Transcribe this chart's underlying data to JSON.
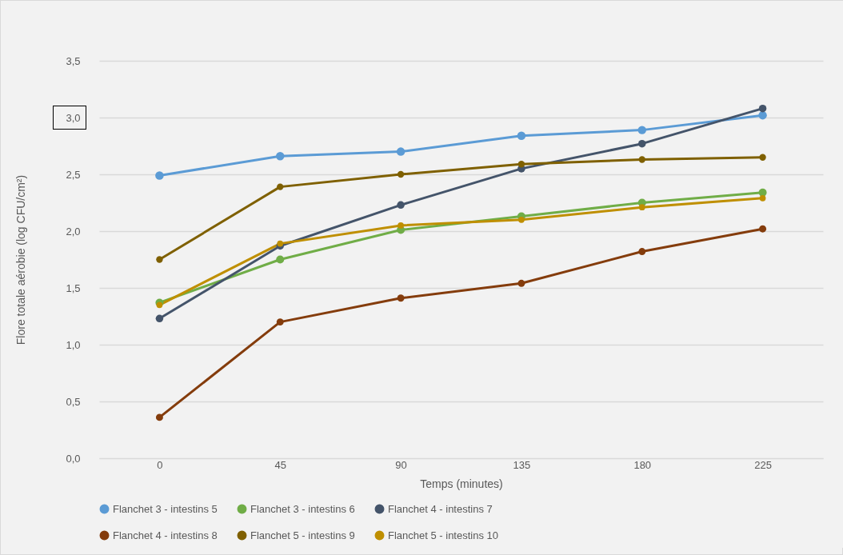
{
  "chart_data": {
    "type": "line",
    "xlabel": "Temps (minutes)",
    "ylabel": "Flore totale aérobie (log CFU/cm²)",
    "categories": [
      "0",
      "45",
      "90",
      "135",
      "180",
      "225"
    ],
    "series": [
      {
        "name": "Flanchet 3 - intestins 5",
        "color": "#5b9bd5",
        "values": [
          2.49,
          2.66,
          2.7,
          2.84,
          2.89,
          3.02
        ]
      },
      {
        "name": "Flanchet 3 - intestins 6",
        "color": "#70ad47",
        "values": [
          1.37,
          1.75,
          2.01,
          2.13,
          2.25,
          2.34
        ]
      },
      {
        "name": "Flanchet 4 - intestins 7",
        "color": "#44546a",
        "values": [
          1.23,
          1.87,
          2.23,
          2.55,
          2.77,
          3.08
        ]
      },
      {
        "name": "Flanchet 4 - intestins 8",
        "color": "#843c0c",
        "values": [
          0.36,
          1.2,
          1.41,
          1.54,
          1.82,
          2.02
        ]
      },
      {
        "name": "Flanchet 5 - intestins 9",
        "color": "#7f6000",
        "values": [
          1.75,
          2.39,
          2.5,
          2.59,
          2.63,
          2.65
        ]
      },
      {
        "name": "Flanchet 5 - intestins 10",
        "color": "#bf8f00",
        "values": [
          1.35,
          1.89,
          2.05,
          2.1,
          2.21,
          2.29
        ]
      }
    ],
    "ylim": [
      0,
      3.5
    ],
    "yticks": [
      {
        "value": 0,
        "label": "0,0"
      },
      {
        "value": 0.5,
        "label": "0,5"
      },
      {
        "value": 1,
        "label": "1,0"
      },
      {
        "value": 1.5,
        "label": "1,5"
      },
      {
        "value": 2,
        "label": "2,0"
      },
      {
        "value": 2.5,
        "label": "2,5"
      },
      {
        "value": 3,
        "label": "3,0"
      },
      {
        "value": 3.5,
        "label": "3,5"
      }
    ],
    "grid": "y",
    "legend": "bottom",
    "marker": "circle",
    "line_style": "solid"
  }
}
